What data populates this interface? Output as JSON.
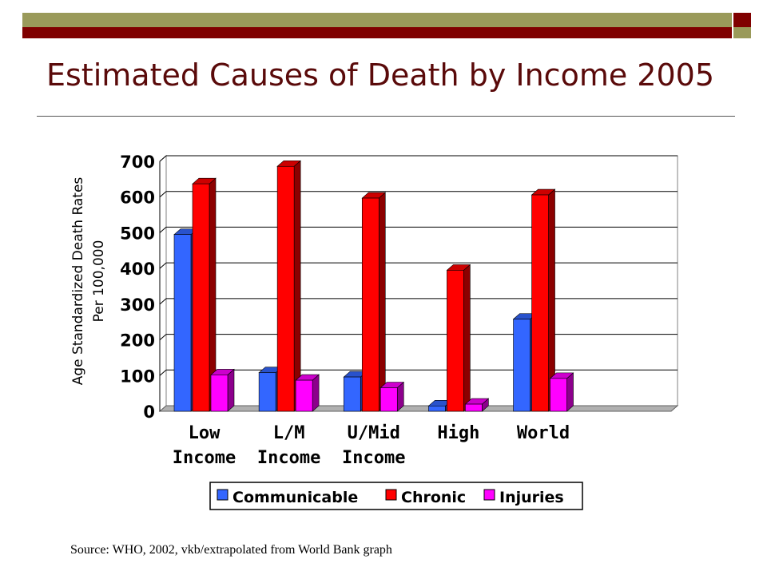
{
  "slide": {
    "title": "Estimated Causes of Death by Income 2005",
    "source": "Source:  WHO, 2002, vkb/extrapolated from World Bank graph"
  },
  "colors": {
    "theme_olive": "#9a9a5a",
    "theme_maroon": "#800000",
    "title_text": "#5a0a0a"
  },
  "chart_data": {
    "type": "bar",
    "style": "3d-clustered",
    "title": "",
    "ylabel_lines": [
      "Age Standardized Death Rates",
      "Per 100,000"
    ],
    "xlabel": "",
    "categories": [
      [
        "Low",
        "Income"
      ],
      [
        "L/M",
        "Income"
      ],
      [
        "U/Mid",
        "Income"
      ],
      [
        "High",
        ""
      ],
      [
        "World",
        ""
      ]
    ],
    "series": [
      {
        "name": "Communicable",
        "color": "#3366ff",
        "values": [
          495,
          108,
          96,
          15,
          258
        ]
      },
      {
        "name": "Chronic",
        "color": "#ff0000",
        "values": [
          637,
          686,
          597,
          395,
          606
        ]
      },
      {
        "name": "Injuries",
        "color": "#ff00ff",
        "values": [
          102,
          87,
          66,
          20,
          92
        ]
      }
    ],
    "ylim": [
      0,
      700
    ],
    "yticks": [
      0,
      100,
      200,
      300,
      400,
      500,
      600,
      700
    ],
    "grid": true,
    "legend": "bottom-center"
  }
}
